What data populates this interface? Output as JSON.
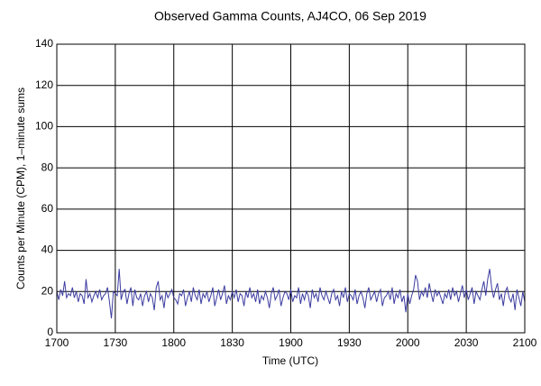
{
  "chart_data": {
    "type": "line",
    "title": "Observed Gamma Counts, AJ4CO, 06 Sep 2019",
    "x_label": "Time (UTC)",
    "y_label": "Counts per Minute (CPM), 1–minute sums",
    "xlim": [
      1020,
      1260
    ],
    "xticks": [
      {
        "value": 1020,
        "label": "1700"
      },
      {
        "value": 1050,
        "label": "1730"
      },
      {
        "value": 1080,
        "label": "1800"
      },
      {
        "value": 1110,
        "label": "1830"
      },
      {
        "value": 1140,
        "label": "1900"
      },
      {
        "value": 1170,
        "label": "1930"
      },
      {
        "value": 1200,
        "label": "2000"
      },
      {
        "value": 1230,
        "label": "2030"
      },
      {
        "value": 1260,
        "label": "2100"
      }
    ],
    "ylim": [
      0,
      140
    ],
    "yticks": [
      0,
      20,
      40,
      60,
      80,
      100,
      120,
      140
    ],
    "grid": true,
    "series": [
      {
        "color": "#3c3ca0",
        "x": [
          1020,
          1021,
          1022,
          1023,
          1024,
          1025,
          1026,
          1027,
          1028,
          1029,
          1030,
          1031,
          1032,
          1033,
          1034,
          1035,
          1036,
          1037,
          1038,
          1039,
          1040,
          1041,
          1042,
          1043,
          1044,
          1045,
          1046,
          1047,
          1048,
          1049,
          1050,
          1051,
          1052,
          1053,
          1054,
          1055,
          1056,
          1057,
          1058,
          1059,
          1060,
          1061,
          1062,
          1063,
          1064,
          1065,
          1066,
          1067,
          1068,
          1069,
          1070,
          1071,
          1072,
          1073,
          1074,
          1075,
          1076,
          1077,
          1078,
          1079,
          1080,
          1081,
          1082,
          1083,
          1084,
          1085,
          1086,
          1087,
          1088,
          1089,
          1090,
          1091,
          1092,
          1093,
          1094,
          1095,
          1096,
          1097,
          1098,
          1099,
          1100,
          1101,
          1102,
          1103,
          1104,
          1105,
          1106,
          1107,
          1108,
          1109,
          1110,
          1111,
          1112,
          1113,
          1114,
          1115,
          1116,
          1117,
          1118,
          1119,
          1120,
          1121,
          1122,
          1123,
          1124,
          1125,
          1126,
          1127,
          1128,
          1129,
          1130,
          1131,
          1132,
          1133,
          1134,
          1135,
          1136,
          1137,
          1138,
          1139,
          1140,
          1141,
          1142,
          1143,
          1144,
          1145,
          1146,
          1147,
          1148,
          1149,
          1150,
          1151,
          1152,
          1153,
          1154,
          1155,
          1156,
          1157,
          1158,
          1159,
          1160,
          1161,
          1162,
          1163,
          1164,
          1165,
          1166,
          1167,
          1168,
          1169,
          1170,
          1171,
          1172,
          1173,
          1174,
          1175,
          1176,
          1177,
          1178,
          1179,
          1180,
          1181,
          1182,
          1183,
          1184,
          1185,
          1186,
          1187,
          1188,
          1189,
          1190,
          1191,
          1192,
          1193,
          1194,
          1195,
          1196,
          1197,
          1198,
          1199,
          1200,
          1201,
          1202,
          1203,
          1204,
          1205,
          1206,
          1207,
          1208,
          1209,
          1210,
          1211,
          1212,
          1213,
          1214,
          1215,
          1216,
          1217,
          1218,
          1219,
          1220,
          1221,
          1222,
          1223,
          1224,
          1225,
          1226,
          1227,
          1228,
          1229,
          1230,
          1231,
          1232,
          1233,
          1234,
          1235,
          1236,
          1237,
          1238,
          1239,
          1240,
          1241,
          1242,
          1243,
          1244,
          1245,
          1246,
          1247,
          1248,
          1249,
          1250,
          1251,
          1252,
          1253,
          1254,
          1255,
          1256,
          1257,
          1258,
          1259,
          1260
        ],
        "values": [
          20,
          16,
          21,
          18,
          25,
          17,
          19,
          18,
          22,
          17,
          20,
          15,
          19,
          18,
          14,
          26,
          17,
          19,
          15,
          18,
          20,
          17,
          21,
          16,
          18,
          19,
          22,
          15,
          7,
          20,
          19,
          18,
          31,
          16,
          20,
          21,
          14,
          19,
          22,
          13,
          21,
          17,
          16,
          19,
          13,
          18,
          20,
          15,
          19,
          17,
          11,
          22,
          25,
          16,
          18,
          12,
          20,
          17,
          19,
          21,
          17,
          16,
          14,
          19,
          18,
          21,
          13,
          17,
          20,
          15,
          22,
          18,
          16,
          21,
          14,
          19,
          17,
          20,
          15,
          18,
          22,
          13,
          17,
          21,
          16,
          19,
          23,
          14,
          18,
          16,
          20,
          17,
          21,
          15,
          19,
          18,
          13,
          20,
          17,
          22,
          17,
          19,
          15,
          21,
          14,
          18,
          16,
          20,
          17,
          12,
          19,
          22,
          16,
          18,
          21,
          13,
          17,
          20,
          19,
          16,
          21,
          15,
          18,
          17,
          22,
          14,
          19,
          16,
          20,
          18,
          12,
          21,
          17,
          19,
          15,
          22,
          18,
          16,
          20,
          17,
          14,
          19,
          21,
          16,
          18,
          13,
          20,
          17,
          22,
          15,
          19,
          18,
          16,
          21,
          14,
          18,
          20,
          17,
          12,
          19,
          22,
          16,
          18,
          20,
          15,
          19,
          21,
          13,
          17,
          18,
          20,
          16,
          22,
          14,
          19,
          17,
          21,
          15,
          18,
          10,
          19,
          14,
          18,
          21,
          28,
          25,
          16,
          20,
          18,
          22,
          17,
          24,
          19,
          15,
          21,
          18,
          20,
          17,
          14,
          19,
          17,
          21,
          16,
          22,
          18,
          20,
          15,
          19,
          23,
          17,
          21,
          16,
          19,
          22,
          14,
          20,
          18,
          16,
          21,
          25,
          18,
          26,
          31,
          22,
          17,
          21,
          24,
          16,
          19,
          13,
          20,
          22,
          17,
          15,
          19,
          11,
          21,
          17,
          13,
          20,
          15
        ]
      }
    ]
  }
}
